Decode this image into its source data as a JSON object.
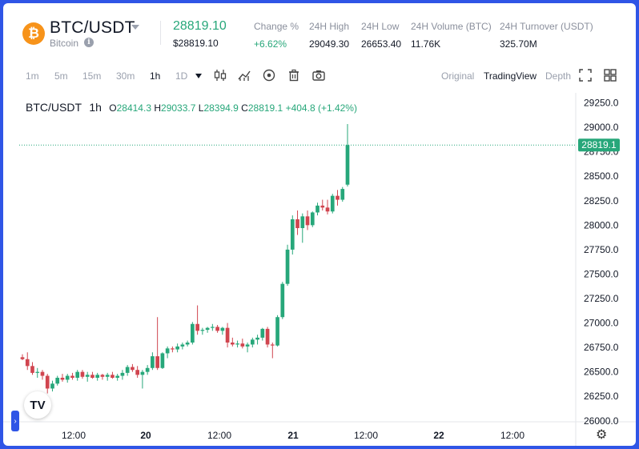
{
  "header": {
    "pair": "BTC/USDT",
    "coin_name": "Bitcoin",
    "coin_symbol": "₿",
    "info_symbol": "i",
    "last_price": "28819.10",
    "last_price_usd": "$28819.10",
    "stats": [
      {
        "label": "Change %",
        "value": "+6.62%",
        "positive": true
      },
      {
        "label": "24H High",
        "value": "29049.30"
      },
      {
        "label": "24H Low",
        "value": "26653.40"
      },
      {
        "label": "24H Volume (BTC)",
        "value": "11.76K"
      },
      {
        "label": "24H Turnover (USDT)",
        "value": "325.70M"
      }
    ]
  },
  "toolbar": {
    "intervals": [
      "1m",
      "5m",
      "15m",
      "30m",
      "1h",
      "1D"
    ],
    "selected_interval": "1h",
    "icons": [
      "candlestick-icon",
      "indicators-icon",
      "eye-icon",
      "trash-icon",
      "camera-icon"
    ],
    "views": [
      "Original",
      "TradingView",
      "Depth"
    ],
    "selected_view": "TradingView"
  },
  "legend": {
    "symbol": "BTC/USDT",
    "interval": "1h",
    "o_label": "O",
    "o": "28414.3",
    "h_label": "H",
    "h": "29033.7",
    "l_label": "L",
    "l": "28394.9",
    "c_label": "C",
    "c": "28819.1",
    "change": "+404.8 (+1.42%)"
  },
  "colors": {
    "up": "#27a77a",
    "down": "#d0454f",
    "accent": "#2f55e6",
    "brand": "#f7931a"
  },
  "chart_data": {
    "type": "candlestick",
    "y_ticks": [
      "29250.0",
      "29000.0",
      "28750.0",
      "28500.0",
      "28250.0",
      "28000.0",
      "27750.0",
      "27500.0",
      "27250.0",
      "27000.0",
      "26750.0",
      "26500.0",
      "26250.0",
      "26000.0"
    ],
    "ylim": [
      25990,
      29320
    ],
    "x_ticks": [
      "12:00",
      "20",
      "12:00",
      "21",
      "12:00",
      "22",
      "12:00"
    ],
    "last_price_label": "28819.1",
    "candles": [
      [
        26650,
        26680,
        26620,
        26630
      ],
      [
        26630,
        26700,
        26520,
        26560
      ],
      [
        26560,
        26600,
        26470,
        26490
      ],
      [
        26490,
        26540,
        26440,
        26500
      ],
      [
        26500,
        26520,
        26420,
        26460
      ],
      [
        26460,
        26480,
        26280,
        26330
      ],
      [
        26330,
        26410,
        26300,
        26380
      ],
      [
        26380,
        26460,
        26360,
        26440
      ],
      [
        26440,
        26480,
        26400,
        26420
      ],
      [
        26420,
        26480,
        26390,
        26460
      ],
      [
        26460,
        26490,
        26420,
        26440
      ],
      [
        26440,
        26520,
        26410,
        26500
      ],
      [
        26500,
        26520,
        26430,
        26450
      ],
      [
        26450,
        26500,
        26400,
        26470
      ],
      [
        26470,
        26500,
        26430,
        26440
      ],
      [
        26440,
        26490,
        26410,
        26470
      ],
      [
        26470,
        26480,
        26420,
        26450
      ],
      [
        26450,
        26490,
        26410,
        26470
      ],
      [
        26470,
        26500,
        26430,
        26440
      ],
      [
        26440,
        26480,
        26410,
        26460
      ],
      [
        26460,
        26520,
        26420,
        26490
      ],
      [
        26490,
        26570,
        26460,
        26550
      ],
      [
        26550,
        26580,
        26500,
        26520
      ],
      [
        26520,
        26560,
        26440,
        26470
      ],
      [
        26470,
        26520,
        26330,
        26500
      ],
      [
        26500,
        26570,
        26470,
        26540
      ],
      [
        26540,
        26700,
        26520,
        26660
      ],
      [
        26660,
        27060,
        26520,
        26540
      ],
      [
        26540,
        26700,
        26530,
        26690
      ],
      [
        26690,
        26760,
        26640,
        26740
      ],
      [
        26740,
        26760,
        26700,
        26730
      ],
      [
        26730,
        26790,
        26700,
        26760
      ],
      [
        26760,
        26800,
        26730,
        26780
      ],
      [
        26780,
        26820,
        26760,
        26800
      ],
      [
        26800,
        27010,
        26780,
        26990
      ],
      [
        26990,
        27180,
        26880,
        26920
      ],
      [
        26920,
        26950,
        26880,
        26930
      ],
      [
        26930,
        26960,
        26900,
        26950
      ],
      [
        26950,
        26990,
        26920,
        26960
      ],
      [
        26960,
        26980,
        26900,
        26920
      ],
      [
        26920,
        26960,
        26880,
        26950
      ],
      [
        26950,
        27000,
        26750,
        26800
      ],
      [
        26800,
        26850,
        26760,
        26780
      ],
      [
        26780,
        26820,
        26750,
        26790
      ],
      [
        26790,
        26840,
        26740,
        26760
      ],
      [
        26760,
        26800,
        26700,
        26780
      ],
      [
        26780,
        26850,
        26750,
        26830
      ],
      [
        26830,
        26880,
        26780,
        26850
      ],
      [
        26850,
        26950,
        26820,
        26940
      ],
      [
        26940,
        26960,
        26750,
        26780
      ],
      [
        26780,
        26800,
        26640,
        26770
      ],
      [
        26770,
        27080,
        26760,
        27060
      ],
      [
        27060,
        27420,
        27040,
        27400
      ],
      [
        27400,
        27800,
        27380,
        27750
      ],
      [
        27750,
        28100,
        27700,
        28060
      ],
      [
        28060,
        28150,
        27900,
        27970
      ],
      [
        27970,
        28120,
        27820,
        28090
      ],
      [
        28090,
        28150,
        27950,
        28000
      ],
      [
        28000,
        28140,
        27980,
        28130
      ],
      [
        28130,
        28230,
        28100,
        28200
      ],
      [
        28200,
        28260,
        28150,
        28180
      ],
      [
        28180,
        28260,
        28110,
        28140
      ],
      [
        28140,
        28320,
        28120,
        28300
      ],
      [
        28300,
        28360,
        28200,
        28260
      ],
      [
        28260,
        28390,
        28240,
        28370
      ],
      [
        28414,
        29034,
        28395,
        28819
      ]
    ]
  }
}
